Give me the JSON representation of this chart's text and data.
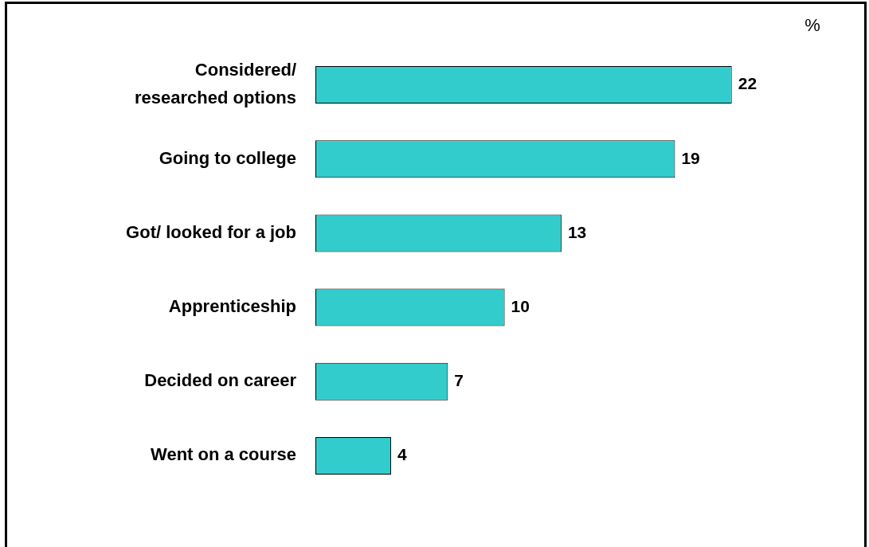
{
  "chart_data": {
    "type": "bar",
    "orientation": "horizontal",
    "xlabel": "%",
    "categories": [
      "Considered/\nresearched options",
      "Going to college",
      "Got/ looked for a job",
      "Apprenticeship",
      "Decided on career",
      "Went on a course"
    ],
    "values": [
      22,
      19,
      13,
      10,
      7,
      4
    ],
    "color": "#33cccc",
    "data_labels": true,
    "legend": false,
    "tick_labels": "y"
  }
}
